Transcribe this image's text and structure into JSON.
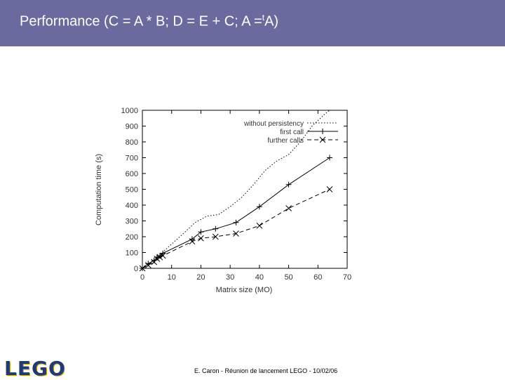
{
  "slide": {
    "title_main": "Performance (C = A * B; D = E + C; A =",
    "title_sup": "t",
    "title_end": "A)",
    "footer": "E. Caron - Réunion de lancement LEGO - 10/02/06",
    "logo_text": "LEGO",
    "colors": {
      "header": "#6a6a9e",
      "logo": "#1e3a78",
      "logo_accent": "#c9a400"
    }
  },
  "chart_data": {
    "type": "line",
    "title": "",
    "xlabel": "Matrix size (MO)",
    "ylabel": "Computation time (s)",
    "xlim": [
      0,
      70
    ],
    "ylim": [
      0,
      1000
    ],
    "xticks": [
      0,
      10,
      20,
      30,
      40,
      50,
      60,
      70
    ],
    "yticks": [
      0,
      100,
      200,
      300,
      400,
      500,
      600,
      700,
      800,
      900,
      1000
    ],
    "grid": false,
    "legend_position": "top-right",
    "series": [
      {
        "name": "without persistency",
        "style": "dotted",
        "marker": "none",
        "x": [
          0,
          2,
          4,
          6,
          8,
          14,
          18,
          22,
          26,
          30,
          34,
          38,
          42,
          46,
          50,
          54,
          58,
          62,
          64
        ],
        "y": [
          0,
          30,
          50,
          80,
          120,
          220,
          290,
          330,
          340,
          390,
          450,
          530,
          620,
          680,
          720,
          800,
          900,
          970,
          1000
        ]
      },
      {
        "name": "first call",
        "style": "solid",
        "marker": "plus",
        "x": [
          0,
          2,
          4,
          5,
          6,
          7,
          17,
          20,
          25,
          32,
          40,
          50,
          64
        ],
        "y": [
          0,
          30,
          50,
          70,
          80,
          95,
          185,
          230,
          250,
          290,
          390,
          530,
          700
        ]
      },
      {
        "name": "further calls",
        "style": "dashed",
        "marker": "cross",
        "x": [
          0,
          2,
          4,
          5,
          6,
          7,
          17,
          20,
          25,
          32,
          40,
          50,
          64
        ],
        "y": [
          0,
          20,
          40,
          60,
          70,
          80,
          170,
          190,
          200,
          220,
          270,
          380,
          500
        ]
      }
    ]
  }
}
